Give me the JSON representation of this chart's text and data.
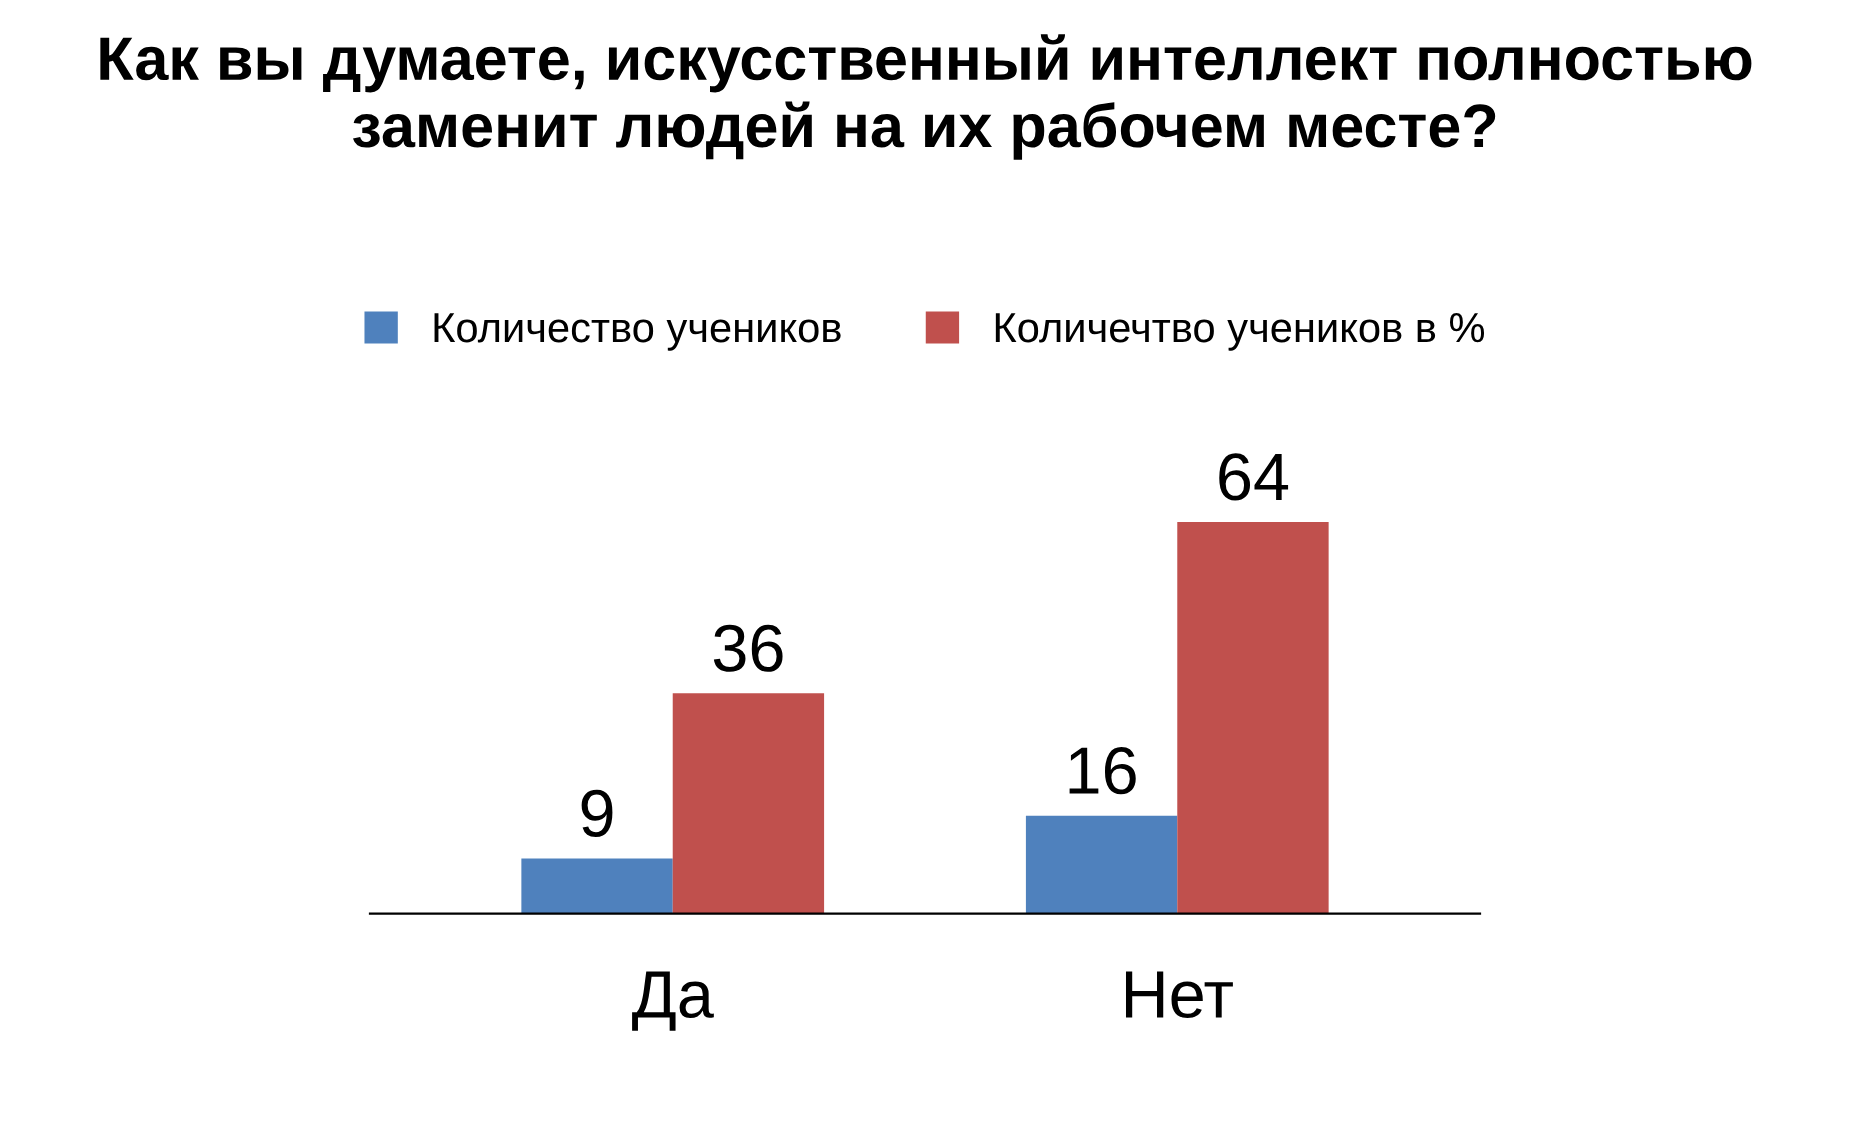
{
  "chart_data": {
    "type": "bar",
    "title": "Как вы думаете, искусственный интеллект полностью заменит людей на их рабочем месте?",
    "categories": [
      "Да",
      "Нет"
    ],
    "series": [
      {
        "name": "Количество учеников",
        "color": "#4f81bd",
        "values": [
          9,
          16
        ]
      },
      {
        "name": "Количечтво учеников в %",
        "color": "#c0504d",
        "values": [
          36,
          64
        ]
      }
    ],
    "data_labels": true,
    "legend": "top",
    "grid": false
  }
}
